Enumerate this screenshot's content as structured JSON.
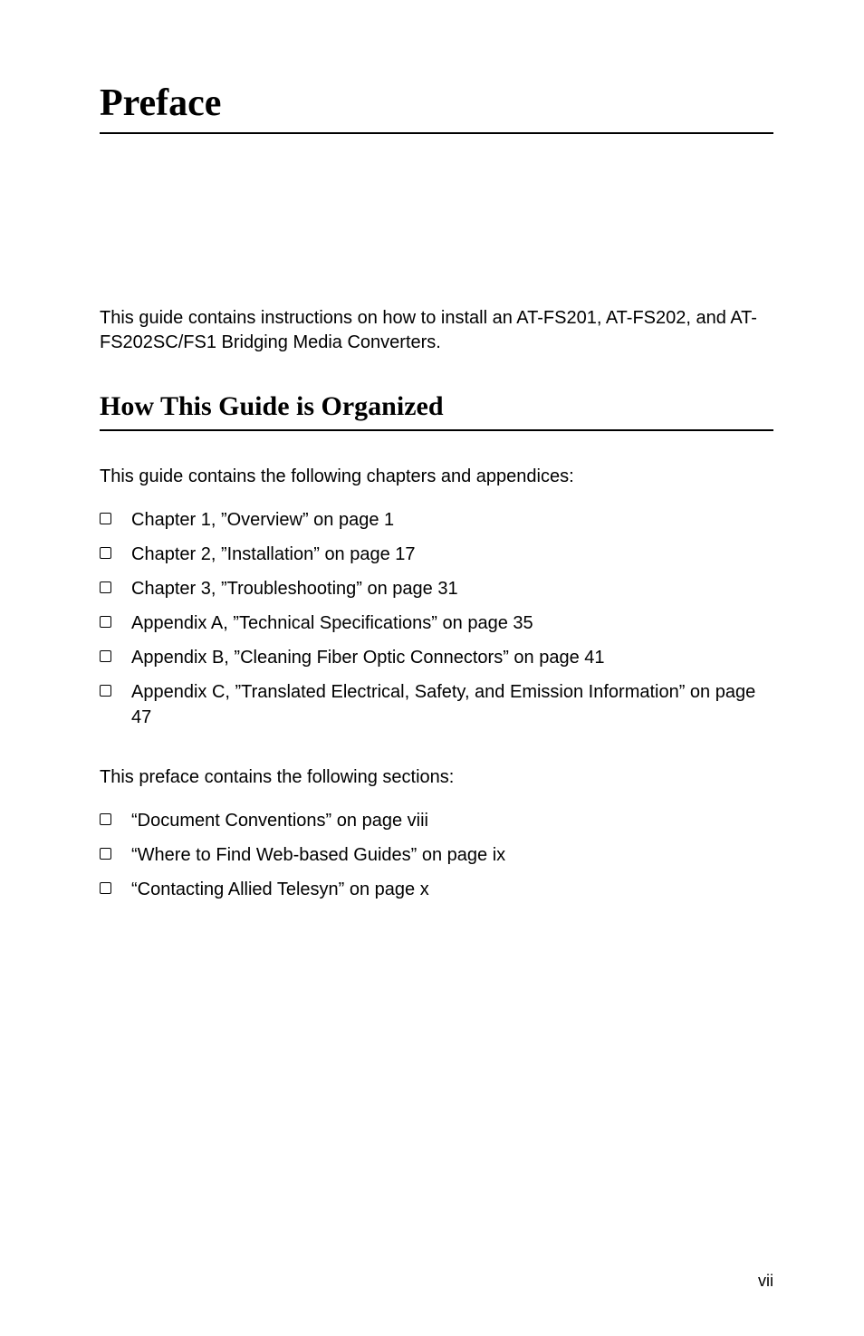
{
  "mainTitle": "Preface",
  "introText": "This guide contains instructions on how to install an AT-FS201, AT-FS202, and AT-FS202SC/FS1 Bridging Media Converters.",
  "sectionHeading": "How This Guide is Organized",
  "chaptersIntro": "This guide contains the following chapters and appendices:",
  "chapters": [
    "Chapter 1, ”Overview” on page 1",
    "Chapter 2, ”Installation” on page 17",
    "Chapter 3, ”Troubleshooting” on page 31",
    "Appendix A, ”Technical Specifications” on page 35",
    "Appendix B, ”Cleaning Fiber Optic Connectors” on page 41",
    "Appendix C, ”Translated Electrical, Safety, and Emission Information” on page 47"
  ],
  "prefaceIntro": "This preface contains the following sections:",
  "sections": [
    "“Document Conventions” on page viii",
    "“Where to Find Web-based Guides” on page ix",
    "“Contacting Allied Telesyn” on page x"
  ],
  "pageNumber": "vii"
}
